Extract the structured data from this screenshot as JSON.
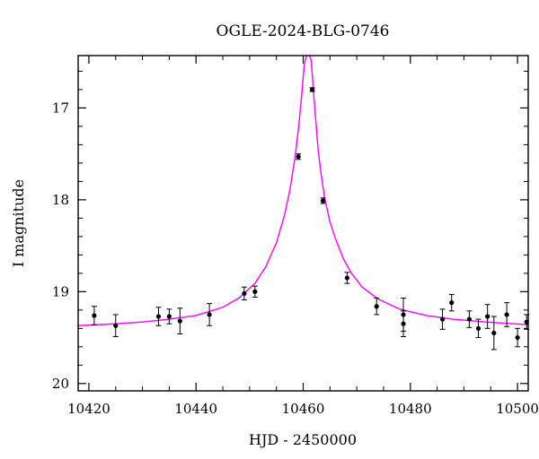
{
  "chart_data": {
    "type": "scatter",
    "title": "OGLE-2024-BLG-0746",
    "xlabel": "HJD - 2450000",
    "ylabel": "I magnitude",
    "xlim": [
      10418,
      10502
    ],
    "ylim": [
      20.08,
      16.43
    ],
    "y_inverted": true,
    "grid": false,
    "x_ticks": [
      10420,
      10440,
      10460,
      10480,
      10500
    ],
    "y_ticks": [
      17,
      18,
      19,
      20
    ],
    "x_tick_labels": [
      "10420",
      "10440",
      "10460",
      "10480",
      "10500"
    ],
    "y_tick_labels": [
      "17",
      "18",
      "19",
      "20"
    ],
    "points_color": "#000000",
    "model_color": "#ff00ff",
    "points": [
      {
        "x": 10421.0,
        "y": 19.26,
        "err": 0.1
      },
      {
        "x": 10425.0,
        "y": 19.37,
        "err": 0.12
      },
      {
        "x": 10433.0,
        "y": 19.27,
        "err": 0.1
      },
      {
        "x": 10435.0,
        "y": 19.27,
        "err": 0.08
      },
      {
        "x": 10437.0,
        "y": 19.32,
        "err": 0.14
      },
      {
        "x": 10442.5,
        "y": 19.25,
        "err": 0.12
      },
      {
        "x": 10449.0,
        "y": 19.02,
        "err": 0.07
      },
      {
        "x": 10451.0,
        "y": 19.0,
        "err": 0.06
      },
      {
        "x": 10459.1,
        "y": 17.53,
        "err": 0.03
      },
      {
        "x": 10461.7,
        "y": 16.8,
        "err": 0.02
      },
      {
        "x": 10463.7,
        "y": 18.01,
        "err": 0.03
      },
      {
        "x": 10468.2,
        "y": 18.85,
        "err": 0.06
      },
      {
        "x": 10473.7,
        "y": 19.16,
        "err": 0.09
      },
      {
        "x": 10478.7,
        "y": 19.25,
        "err": 0.18
      },
      {
        "x": 10478.7,
        "y": 19.35,
        "err": 0.14
      },
      {
        "x": 10486.0,
        "y": 19.3,
        "err": 0.11
      },
      {
        "x": 10487.7,
        "y": 19.12,
        "err": 0.09
      },
      {
        "x": 10491.0,
        "y": 19.3,
        "err": 0.09
      },
      {
        "x": 10492.7,
        "y": 19.4,
        "err": 0.1
      },
      {
        "x": 10494.4,
        "y": 19.27,
        "err": 0.13
      },
      {
        "x": 10495.6,
        "y": 19.45,
        "err": 0.18
      },
      {
        "x": 10498.0,
        "y": 19.25,
        "err": 0.13
      },
      {
        "x": 10500.0,
        "y": 19.5,
        "err": 0.1
      },
      {
        "x": 10501.7,
        "y": 19.33,
        "err": 0.08
      }
    ],
    "model": {
      "type": "line",
      "x": [
        10418,
        10425,
        10430,
        10435,
        10440,
        10445,
        10448,
        10451,
        10453,
        10455,
        10456.5,
        10457.5,
        10458.5,
        10459.2,
        10459.8,
        10460.2,
        10460.6,
        10460.9,
        10461.2,
        10461.5,
        10461.9,
        10462.3,
        10462.8,
        10463.3,
        10464,
        10465,
        10466,
        10467.5,
        10469,
        10471,
        10474,
        10478,
        10483,
        10488,
        10494,
        10502
      ],
      "y": [
        19.37,
        19.35,
        19.33,
        19.3,
        19.26,
        19.17,
        19.07,
        18.91,
        18.73,
        18.47,
        18.17,
        17.9,
        17.53,
        17.18,
        16.81,
        16.53,
        16.43,
        16.43,
        16.43,
        16.48,
        16.81,
        17.1,
        17.46,
        17.7,
        17.98,
        18.24,
        18.42,
        18.64,
        18.8,
        18.95,
        19.08,
        19.19,
        19.26,
        19.3,
        19.33,
        19.36
      ]
    }
  }
}
